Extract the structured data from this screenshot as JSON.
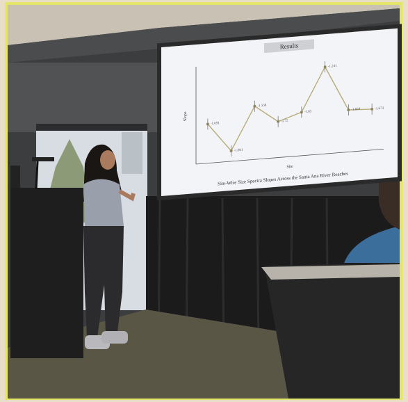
{
  "slide": {
    "title": "Results",
    "caption": "Site-Wise Size Spectra Slopes Across the Santa Ana River Reaches",
    "chart": {
      "type": "line",
      "x_label": "Site",
      "y_label": "Slope",
      "values": [
        -1.691,
        -1.961,
        -1.558,
        -1.72,
        -1.65,
        -1.241,
        -1.664,
        -1.674
      ]
    }
  }
}
